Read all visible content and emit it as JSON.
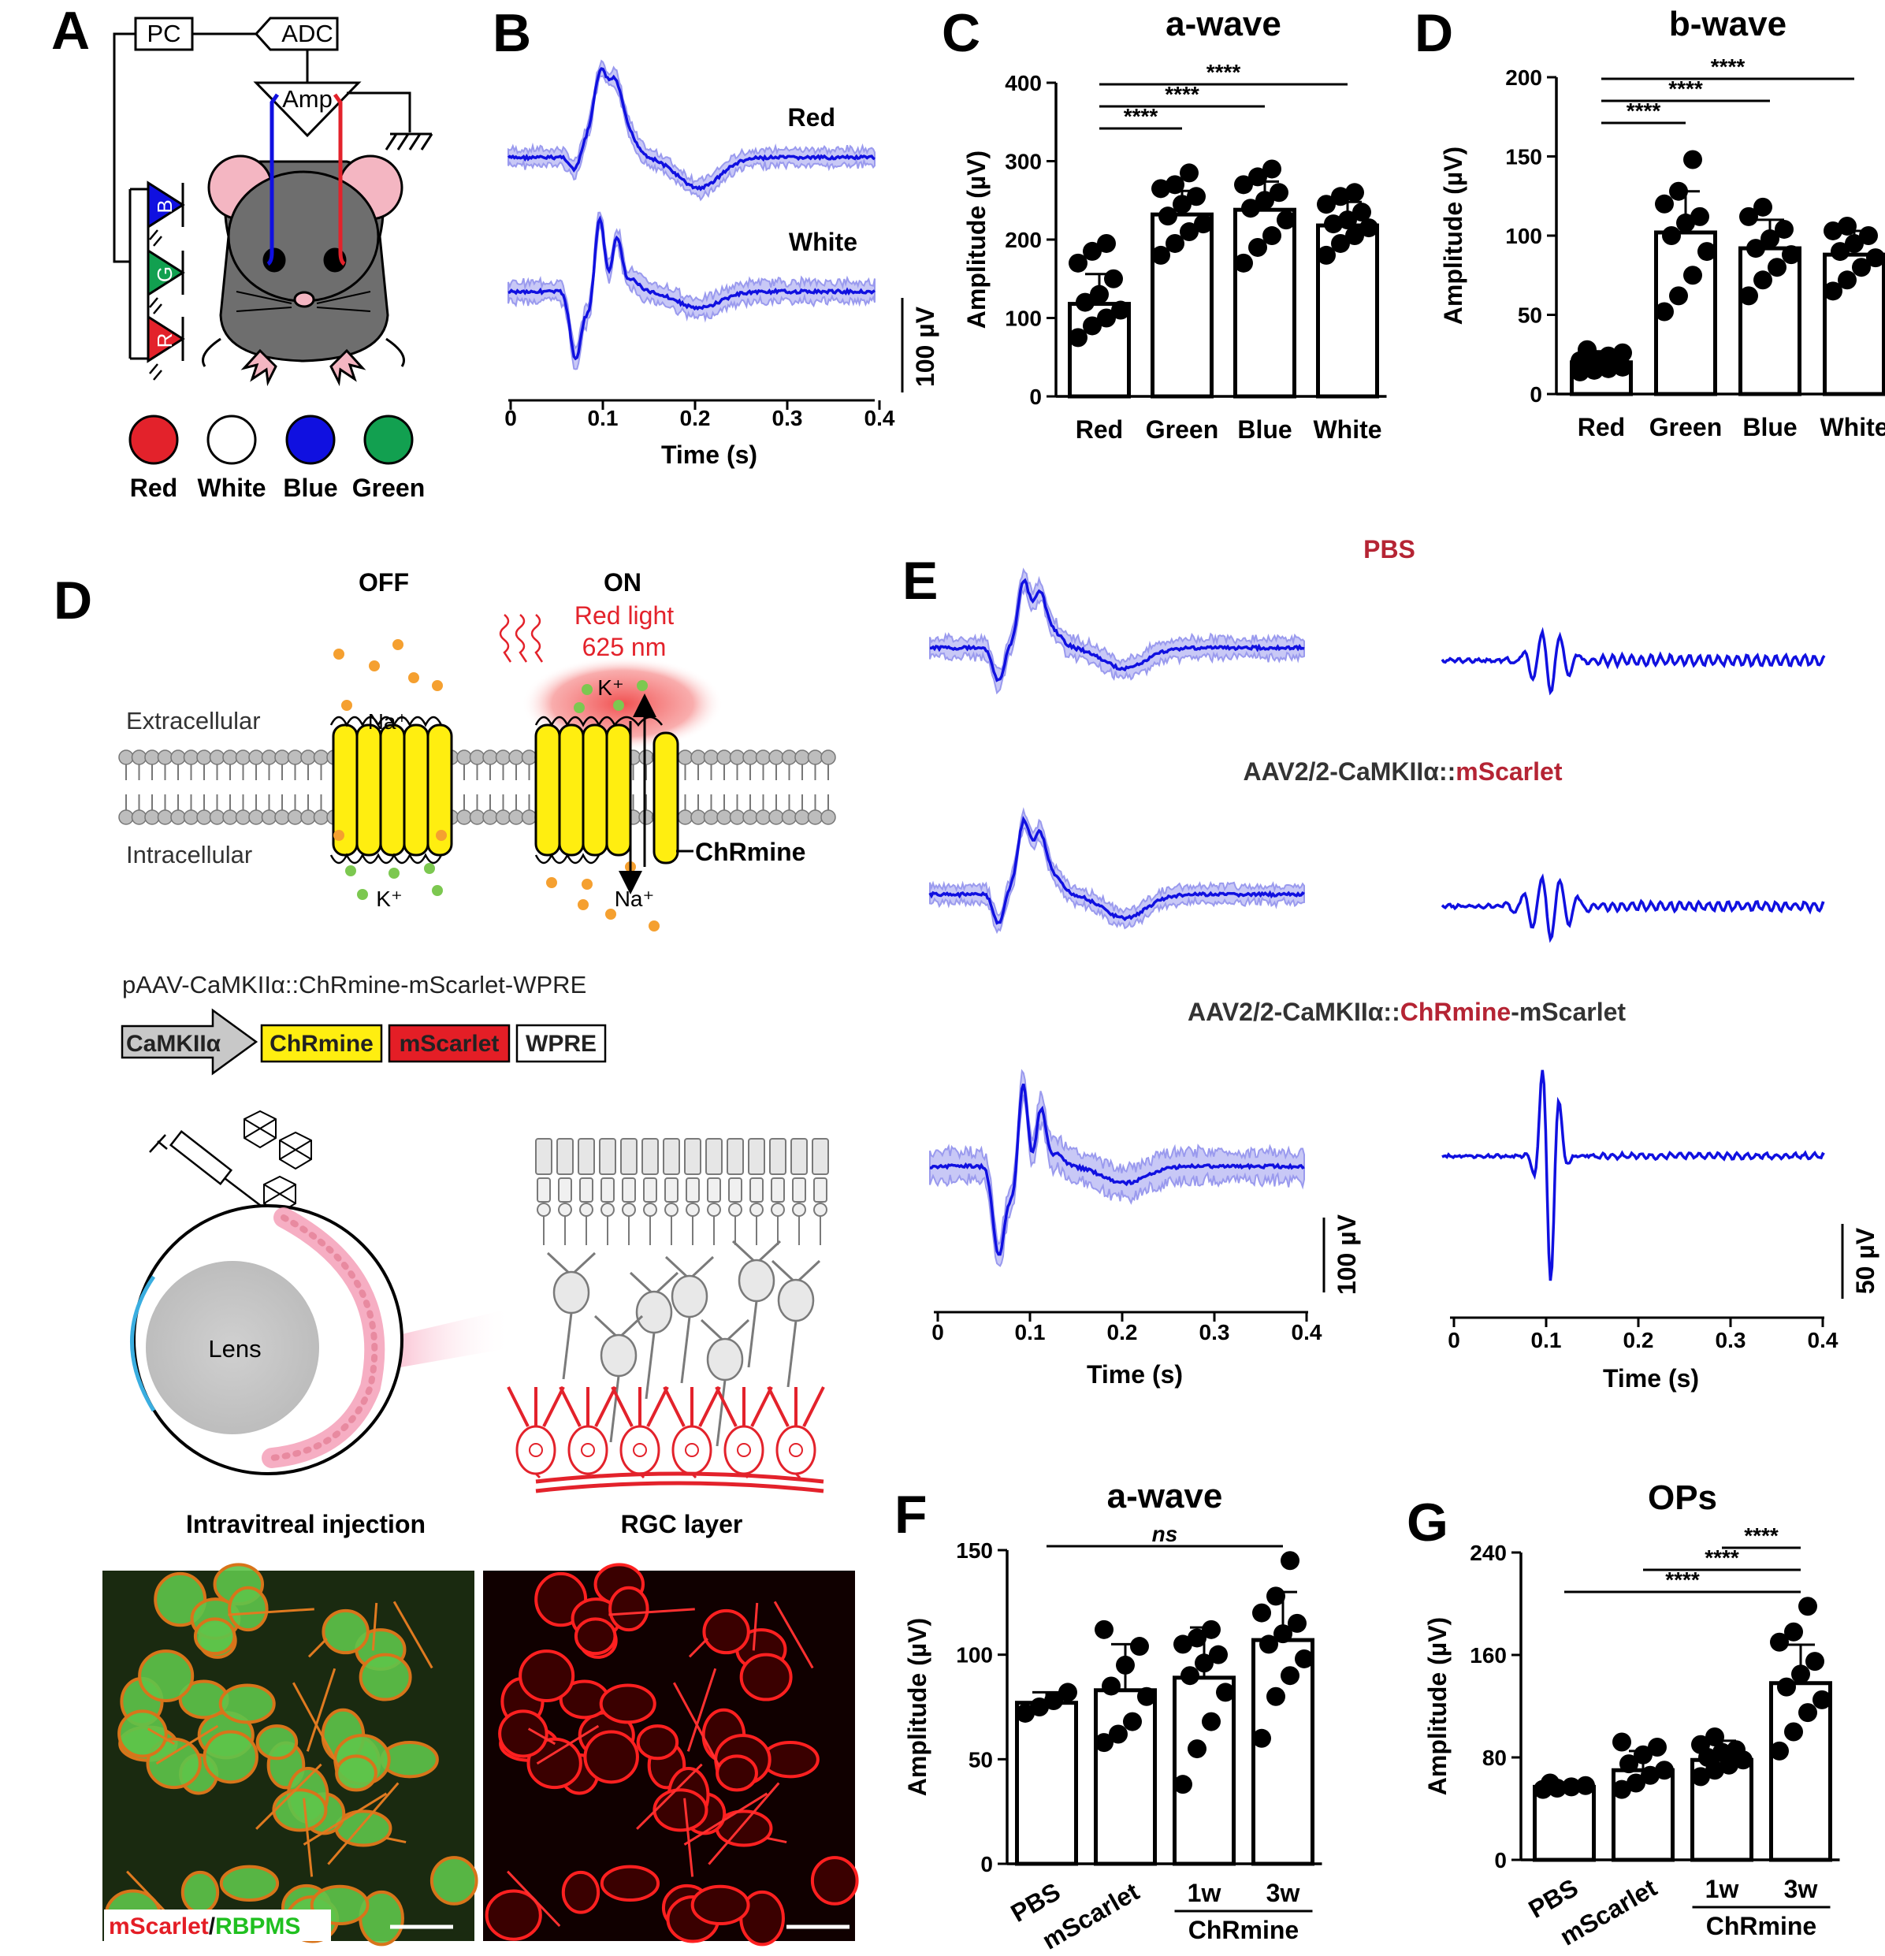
{
  "panel_labels": {
    "A": "A",
    "B": "B",
    "C": "C",
    "D_top": "D",
    "D_left": "D",
    "E": "E",
    "F": "F",
    "G": "G"
  },
  "colors": {
    "trace": "#1010e0",
    "band": "#9a9aee",
    "red": "#e3222b",
    "green": "#12a050",
    "blue": "#1010e0",
    "yellow": "#ffee10",
    "pink": "#f4b6c2",
    "title_red": "#b52434"
  },
  "panel_A": {
    "pc": "PC",
    "adc": "ADC",
    "amp": "Amp",
    "led_letters": [
      "B",
      "G",
      "R"
    ],
    "legend": [
      {
        "label": "Red",
        "color": "#e3222b"
      },
      {
        "label": "White",
        "color": "#ffffff"
      },
      {
        "label": "Blue",
        "color": "#1010e0"
      },
      {
        "label": "Green",
        "color": "#12a050"
      }
    ]
  },
  "panel_B": {
    "trace_labels": [
      "Red",
      "White"
    ],
    "x_ticks": [
      "0",
      "0.1",
      "0.2",
      "0.3",
      "0.4"
    ],
    "xlabel": "Time (s)",
    "scalebar": "100 µV"
  },
  "panel_D_schematic": {
    "off": "OFF",
    "on": "ON",
    "red_light": "Red light",
    "wavelength": "625 nm",
    "extracellular": "Extracellular",
    "intracellular": "Intracellular",
    "ion_na": "Na⁺",
    "ion_k": "K⁺",
    "chrmine": "ChRmine",
    "construct": "pAAV-CaMKIIα::ChRmine-mScarlet-WPRE",
    "construct_boxes": [
      "CaMKIIα",
      "ChRmine",
      "mScarlet",
      "WPRE"
    ],
    "lens": "Lens",
    "captions": [
      "Intravitreal injection",
      "RGC layer"
    ],
    "micrograph_label_red": "mScarlet",
    "micrograph_label_sep": "/",
    "micrograph_label_green": "RBPMS"
  },
  "panel_E": {
    "titles": [
      {
        "parts": [
          {
            "t": "PBS",
            "c": "red"
          }
        ]
      },
      {
        "parts": [
          {
            "t": "AAV2/2-CaMKIIα::",
            "c": "dark"
          },
          {
            "t": "mScarlet",
            "c": "red"
          }
        ]
      },
      {
        "parts": [
          {
            "t": "AAV2/2-CaMKIIα::",
            "c": "dark"
          },
          {
            "t": "ChRmine",
            "c": "red"
          },
          {
            "t": "-mScarlet",
            "c": "dark"
          }
        ]
      }
    ],
    "x_ticks": [
      "0",
      "0.1",
      "0.2",
      "0.3",
      "0.4"
    ],
    "xlabel": "Time (s)",
    "scalebar_left": "100 µV",
    "scalebar_right": "50 µV"
  },
  "chart_data": [
    {
      "panel": "C",
      "type": "bar",
      "title": "a-wave",
      "ylabel": "Amplitude (µV)",
      "categories": [
        "Red",
        "Green",
        "Blue",
        "White"
      ],
      "values": [
        118,
        232,
        238,
        218
      ],
      "errors": [
        38,
        30,
        36,
        30
      ],
      "ylim": [
        0,
        400
      ],
      "yticks": [
        0,
        100,
        200,
        300,
        400
      ],
      "points": [
        [
          75,
          90,
          100,
          110,
          120,
          130,
          150,
          170,
          185,
          195
        ],
        [
          180,
          195,
          210,
          220,
          230,
          245,
          255,
          265,
          270,
          285
        ],
        [
          170,
          190,
          205,
          225,
          240,
          250,
          260,
          270,
          280,
          290
        ],
        [
          180,
          195,
          205,
          215,
          220,
          225,
          235,
          245,
          255,
          260
        ]
      ],
      "significance": [
        {
          "from": 0,
          "to": 1,
          "label": "****"
        },
        {
          "from": 0,
          "to": 2,
          "label": "****"
        },
        {
          "from": 0,
          "to": 3,
          "label": "****"
        }
      ]
    },
    {
      "panel": "D",
      "type": "bar",
      "title": "b-wave",
      "ylabel": "Amplitude (µV)",
      "categories": [
        "Red",
        "Green",
        "Blue",
        "White"
      ],
      "values": [
        20,
        102,
        92,
        88
      ],
      "errors": [
        7,
        26,
        18,
        15
      ],
      "ylim": [
        0,
        200
      ],
      "yticks": [
        0,
        50,
        100,
        150,
        200
      ],
      "points": [
        [
          14,
          15,
          16,
          17,
          18,
          19,
          20,
          21,
          22,
          24,
          26,
          28
        ],
        [
          52,
          62,
          75,
          90,
          100,
          108,
          112,
          120,
          128,
          148
        ],
        [
          62,
          72,
          80,
          88,
          92,
          98,
          104,
          112,
          118
        ],
        [
          65,
          72,
          80,
          86,
          90,
          95,
          100,
          103,
          106
        ]
      ],
      "significance": [
        {
          "from": 0,
          "to": 1,
          "label": "****"
        },
        {
          "from": 0,
          "to": 2,
          "label": "****"
        },
        {
          "from": 0,
          "to": 3,
          "label": "****"
        }
      ]
    },
    {
      "panel": "F",
      "type": "bar",
      "title": "a-wave",
      "ylabel": "Amplitude (µV)",
      "categories": [
        "PBS",
        "mScarlet",
        "1w",
        "3w"
      ],
      "group_label": "ChRmine",
      "group_indices": [
        2,
        3
      ],
      "values": [
        77,
        83,
        89,
        107
      ],
      "errors": [
        5,
        22,
        24,
        23
      ],
      "ylim": [
        0,
        150
      ],
      "yticks": [
        0,
        50,
        100,
        150
      ],
      "points": [
        [
          72,
          75,
          78,
          82
        ],
        [
          58,
          62,
          68,
          80,
          85,
          95,
          104,
          112
        ],
        [
          38,
          55,
          68,
          82,
          90,
          96,
          100,
          105,
          108,
          112
        ],
        [
          60,
          80,
          90,
          98,
          105,
          110,
          115,
          120,
          128,
          145
        ]
      ],
      "significance": [
        {
          "from": 0,
          "to": 3,
          "label": "ns"
        }
      ]
    },
    {
      "panel": "G",
      "type": "bar",
      "title": "OPs",
      "ylabel": "Amplitude (µV)",
      "categories": [
        "PBS",
        "mScarlet",
        "1w",
        "3w"
      ],
      "group_label": "ChRmine",
      "group_indices": [
        2,
        3
      ],
      "values": [
        57,
        70,
        78,
        138
      ],
      "errors": [
        3,
        15,
        15,
        30
      ],
      "ylim": [
        0,
        240
      ],
      "yticks": [
        0,
        80,
        160,
        240
      ],
      "points": [
        [
          55,
          56,
          57,
          58,
          60
        ],
        [
          55,
          60,
          66,
          70,
          75,
          82,
          88,
          92
        ],
        [
          65,
          70,
          74,
          78,
          80,
          84,
          86,
          90,
          96
        ],
        [
          85,
          100,
          115,
          125,
          135,
          145,
          155,
          170,
          178,
          198
        ]
      ],
      "significance": [
        {
          "from": 0,
          "to": 3,
          "label": "****"
        },
        {
          "from": 1,
          "to": 3,
          "label": "****"
        },
        {
          "from": 2,
          "to": 3,
          "label": "****"
        }
      ]
    }
  ]
}
